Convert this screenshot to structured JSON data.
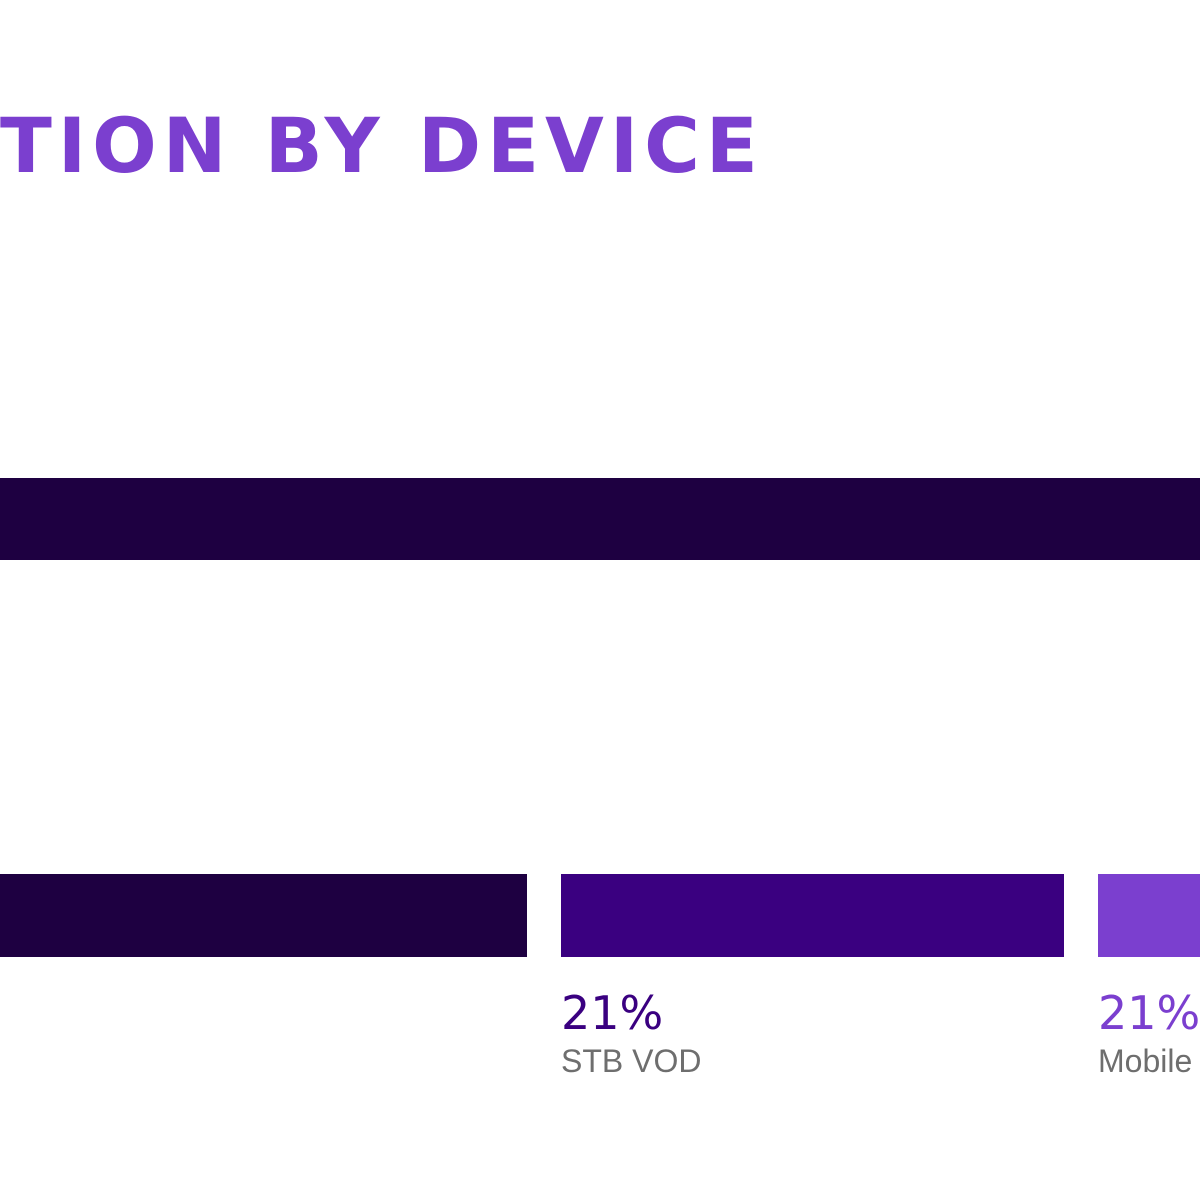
{
  "chart_data": {
    "type": "bar",
    "title": "TION BY DEVICE",
    "title_color": "#7b3fcf",
    "rows": [
      {
        "name": "",
        "segments": [
          {
            "label": "",
            "value_text": "",
            "color": "#1e0041"
          }
        ]
      },
      {
        "name": "",
        "segments": [
          {
            "label": "",
            "value_text": "",
            "color": "#1e0041"
          },
          {
            "label": "STB VOD",
            "value": 21,
            "value_text": "21%",
            "color": "#3a0080"
          },
          {
            "label": "Mobile",
            "value": 21,
            "value_text": "21%",
            "color": "#7b3fcf"
          }
        ]
      }
    ],
    "colors": {
      "dark": "#1e0041",
      "mid": "#3a0080",
      "accent": "#7b3fcf",
      "label_gray": "#6e6e6e"
    }
  }
}
